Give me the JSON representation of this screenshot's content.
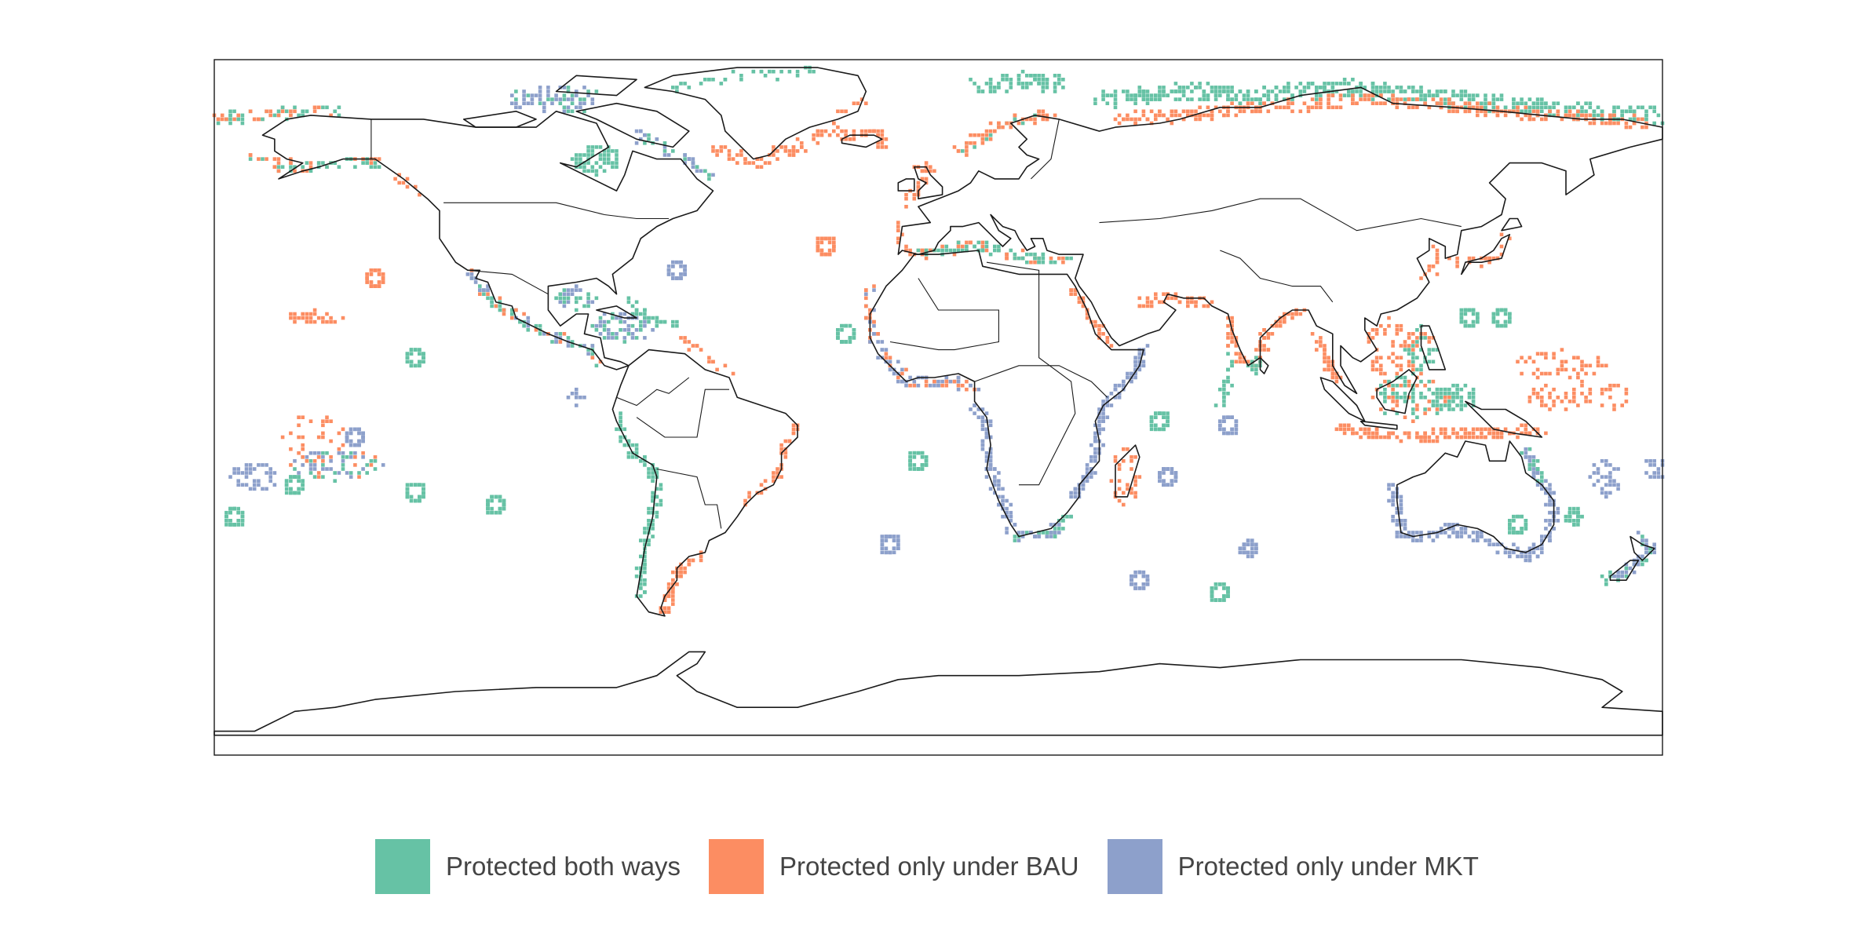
{
  "colors": {
    "both": "#66c2a5",
    "bau": "#fc8d62",
    "mkt": "#8da0cb",
    "land_outline": "#1a1a1a",
    "legend_text": "#444444"
  },
  "legend": {
    "items": [
      {
        "key": "both",
        "label": "Protected both ways",
        "color": "#66c2a5"
      },
      {
        "key": "bau",
        "label": "Protected only under BAU",
        "color": "#fc8d62"
      },
      {
        "key": "mkt",
        "label": "Protected only under MKT",
        "color": "#8da0cb"
      }
    ]
  },
  "map": {
    "projection": "equirectangular",
    "lon_range": [
      -180,
      180
    ],
    "lat_range": [
      -90,
      90
    ],
    "graticule": false,
    "categories": [
      "both",
      "bau",
      "mkt"
    ],
    "protected_regions": [
      {
        "region": "Canadian Arctic Archipelago",
        "category": "mkt"
      },
      {
        "region": "Hudson Bay",
        "category": "both"
      },
      {
        "region": "Alaska / Bering Sea",
        "category": "both"
      },
      {
        "region": "Gulf of Alaska",
        "category": "bau"
      },
      {
        "region": "Greenland coast",
        "category": "bau"
      },
      {
        "region": "Svalbard / Barents Sea",
        "category": "both"
      },
      {
        "region": "Siberian Arctic coast",
        "category": "both"
      },
      {
        "region": "Russian Arctic shelf",
        "category": "bau"
      },
      {
        "region": "Norwegian coast",
        "category": "bau"
      },
      {
        "region": "Iceland",
        "category": "bau"
      },
      {
        "region": "British Isles",
        "category": "bau"
      },
      {
        "region": "Mediterranean Sea",
        "category": "bau"
      },
      {
        "region": "Red Sea",
        "category": "bau"
      },
      {
        "region": "Arabian Sea coast",
        "category": "bau"
      },
      {
        "region": "West African coast",
        "category": "bau"
      },
      {
        "region": "Gulf of Guinea",
        "category": "mkt"
      },
      {
        "region": "Somali / East African coast",
        "category": "mkt"
      },
      {
        "region": "Madagascar",
        "category": "bau"
      },
      {
        "region": "South African coast",
        "category": "mkt"
      },
      {
        "region": "Namibian coast",
        "category": "mkt"
      },
      {
        "region": "Western India",
        "category": "bau"
      },
      {
        "region": "Bay of Bengal",
        "category": "bau"
      },
      {
        "region": "Maldives",
        "category": "both"
      },
      {
        "region": "Sri Lanka",
        "category": "both"
      },
      {
        "region": "South China Sea",
        "category": "bau"
      },
      {
        "region": "Philippines",
        "category": "both"
      },
      {
        "region": "Indonesia",
        "category": "bau"
      },
      {
        "region": "Coral Triangle",
        "category": "both"
      },
      {
        "region": "Micronesia",
        "category": "bau"
      },
      {
        "region": "Japan",
        "category": "bau"
      },
      {
        "region": "Great Barrier Reef",
        "category": "mkt"
      },
      {
        "region": "Southern Australia",
        "category": "mkt"
      },
      {
        "region": "Western Australia",
        "category": "mkt"
      },
      {
        "region": "New Zealand",
        "category": "mkt"
      },
      {
        "region": "New Caledonia / Vanuatu",
        "category": "mkt"
      },
      {
        "region": "Fiji / Tonga",
        "category": "mkt"
      },
      {
        "region": "Hawaii",
        "category": "bau"
      },
      {
        "region": "French Polynesia",
        "category": "mkt"
      },
      {
        "region": "Cook Islands",
        "category": "bau"
      },
      {
        "region": "Caribbean Sea",
        "category": "mkt"
      },
      {
        "region": "Gulf of Mexico",
        "category": "both"
      },
      {
        "region": "Bahamas",
        "category": "both"
      },
      {
        "region": "Pacific Central America",
        "category": "bau"
      },
      {
        "region": "Galápagos",
        "category": "mkt"
      },
      {
        "region": "Peru / Chile coast",
        "category": "both"
      },
      {
        "region": "Patagonia",
        "category": "bau"
      },
      {
        "region": "Brazilian coast",
        "category": "bau"
      },
      {
        "region": "Azores",
        "category": "bau"
      },
      {
        "region": "Bermuda",
        "category": "mkt"
      },
      {
        "region": "Cape Verde",
        "category": "bau"
      },
      {
        "region": "St Helena",
        "category": "both"
      },
      {
        "region": "Tristan da Cunha",
        "category": "mkt"
      },
      {
        "region": "Mauritius / Réunion",
        "category": "mkt"
      },
      {
        "region": "Kerguelen",
        "category": "both"
      },
      {
        "region": "Chagos",
        "category": "mkt"
      },
      {
        "region": "Pitcairn",
        "category": "both"
      },
      {
        "region": "Easter Island",
        "category": "both"
      }
    ]
  }
}
